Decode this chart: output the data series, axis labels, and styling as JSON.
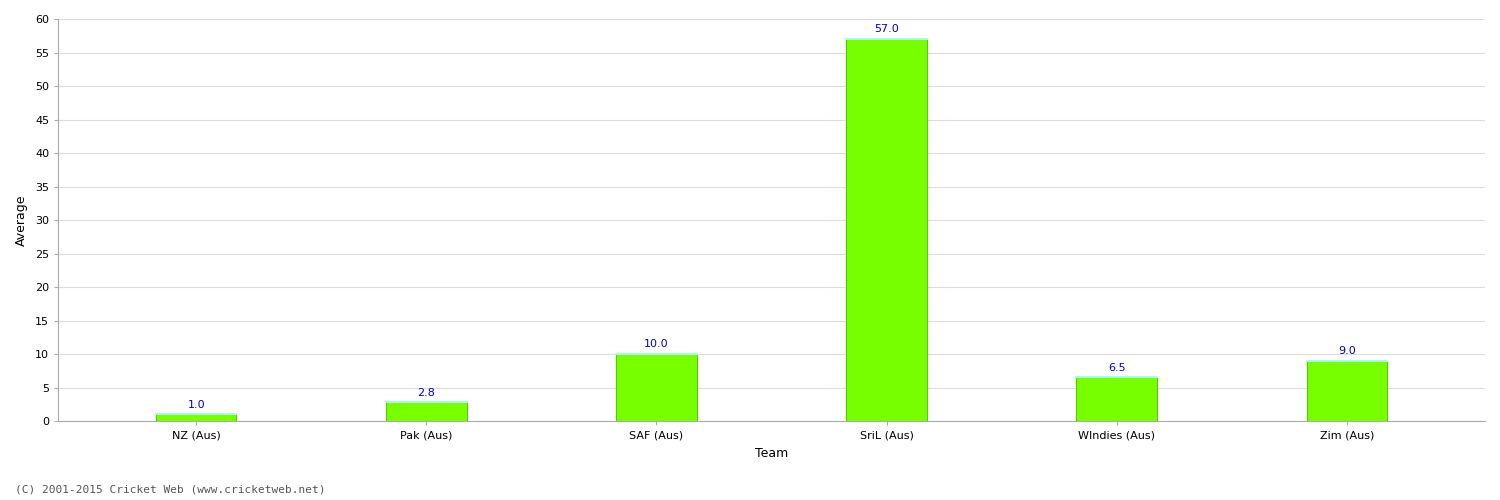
{
  "categories": [
    "NZ (Aus)",
    "Pak (Aus)",
    "SAF (Aus)",
    "SriL (Aus)",
    "WIndies (Aus)",
    "Zim (Aus)"
  ],
  "values": [
    1.0,
    2.8,
    10.0,
    57.0,
    6.5,
    9.0
  ],
  "bar_color": "#77ff00",
  "bar_edge_color": "#55cc00",
  "top_edge_color": "#aaffaa",
  "xlabel": "Team",
  "ylabel": "Average",
  "ylim": [
    0,
    60
  ],
  "yticks": [
    0,
    5,
    10,
    15,
    20,
    25,
    30,
    35,
    40,
    45,
    50,
    55,
    60
  ],
  "label_color": "#0000cc",
  "label_fontsize": 8,
  "axis_fontsize": 9,
  "tick_fontsize": 8,
  "background_color": "#ffffff",
  "grid_color": "#dddddd",
  "footer_text": "(C) 2001-2015 Cricket Web (www.cricketweb.net)",
  "footer_fontsize": 8,
  "footer_color": "#555555",
  "bar_width": 0.35,
  "figsize": [
    15.0,
    5.0
  ],
  "dpi": 100
}
